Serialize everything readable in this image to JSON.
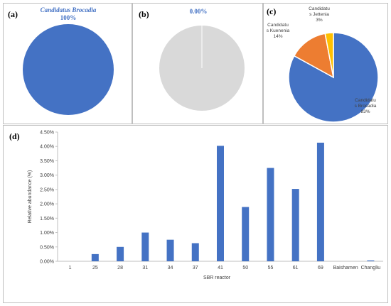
{
  "panel_labels": {
    "a": "(a)",
    "b": "(b)",
    "c": "(c)",
    "d": "(d)"
  },
  "chart_data": [
    {
      "type": "pie",
      "title": "Candidatus Brocadia",
      "subtitle": "100%",
      "slices": [
        {
          "label": "Candidatus Brocadia",
          "value": 100,
          "color": "#4472c4"
        }
      ]
    },
    {
      "type": "pie",
      "title": "0.00%",
      "slices": [
        {
          "label": "",
          "value": 100,
          "color": "#d9d9d9"
        }
      ]
    },
    {
      "type": "pie",
      "slices": [
        {
          "label": "Candidatu s Brocadia",
          "label_lines": [
            "Candidatu",
            "s Brocadia",
            "83%"
          ],
          "value": 83,
          "color": "#4472c4"
        },
        {
          "label": "Candidatu s Kuenenia",
          "label_lines": [
            "Candidatu",
            "s Kuenenia",
            "14%"
          ],
          "value": 14,
          "color": "#ed7d31"
        },
        {
          "label": "Candidatu s Jettenia",
          "label_lines": [
            "Candidatu",
            "s Jettenia",
            "3%"
          ],
          "value": 3,
          "color": "#ffc000"
        }
      ]
    },
    {
      "type": "bar",
      "categories": [
        "1",
        "25",
        "28",
        "31",
        "34",
        "37",
        "41",
        "50",
        "55",
        "61",
        "69",
        "Baishamen",
        "Changliu"
      ],
      "values": [
        0.0,
        0.25,
        0.5,
        1.0,
        0.75,
        0.63,
        4.02,
        1.89,
        3.25,
        2.52,
        4.13,
        0.0,
        0.03
      ],
      "xlabel": "SBR reactor",
      "ylabel": "Relative abundance (%)",
      "ylim": [
        0,
        4.5
      ],
      "yticks": [
        "0.00%",
        "0.50%",
        "1.00%",
        "1.50%",
        "2.00%",
        "2.50%",
        "3.00%",
        "3.50%",
        "4.00%",
        "4.50%"
      ],
      "bar_color": "#4472c4",
      "grid": false
    }
  ]
}
